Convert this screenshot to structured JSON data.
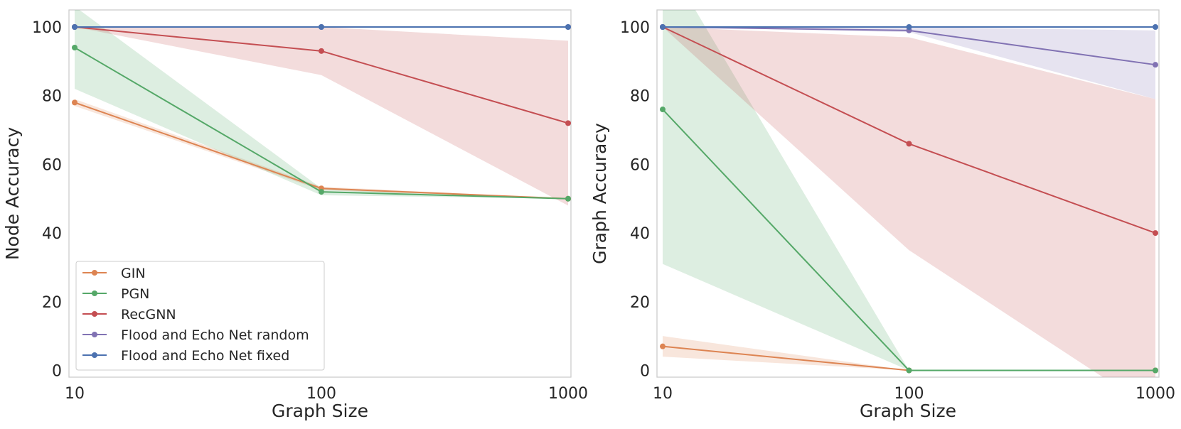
{
  "chart_data": [
    {
      "type": "line",
      "title": "",
      "xlabel": "Graph Size",
      "ylabel": "Node Accuracy",
      "x_scale": "log",
      "x": [
        10,
        100,
        1000
      ],
      "xticks": [
        "10",
        "100",
        "1000"
      ],
      "yticks": [
        "0",
        "20",
        "40",
        "60",
        "80",
        "100"
      ],
      "xlim": [
        10,
        1000
      ],
      "ylim": [
        -2,
        105
      ],
      "grid": false,
      "legend_position": "lower-left",
      "series": [
        {
          "name": "GIN",
          "color": "#dd8452",
          "values": [
            78,
            53,
            50
          ],
          "lower": [
            77,
            52.5,
            50
          ],
          "upper": [
            79,
            53.5,
            50
          ]
        },
        {
          "name": "PGN",
          "color": "#55a868",
          "values": [
            94,
            52,
            50
          ],
          "lower": [
            82,
            51,
            50
          ],
          "upper": [
            106,
            53,
            50
          ]
        },
        {
          "name": "RecGNN",
          "color": "#c44e52",
          "values": [
            100,
            93,
            72
          ],
          "lower": [
            100,
            86,
            48
          ],
          "upper": [
            100,
            100,
            96
          ]
        },
        {
          "name": "Flood and Echo Net random",
          "color": "#8172b3",
          "values": [
            100,
            100,
            100
          ],
          "lower": [
            100,
            100,
            100
          ],
          "upper": [
            100,
            100,
            100
          ]
        },
        {
          "name": "Flood and Echo Net fixed",
          "color": "#4c72b0",
          "values": [
            100,
            100,
            100
          ],
          "lower": [
            100,
            100,
            100
          ],
          "upper": [
            100,
            100,
            100
          ]
        }
      ]
    },
    {
      "type": "line",
      "title": "",
      "xlabel": "Graph Size",
      "ylabel": "Graph Accuracy",
      "x_scale": "log",
      "x": [
        10,
        100,
        1000
      ],
      "xticks": [
        "10",
        "100",
        "1000"
      ],
      "yticks": [
        "0",
        "20",
        "40",
        "60",
        "80",
        "100"
      ],
      "xlim": [
        10,
        1000
      ],
      "ylim": [
        -2,
        105
      ],
      "grid": false,
      "legend_position": "none",
      "series": [
        {
          "name": "GIN",
          "color": "#dd8452",
          "values": [
            7,
            0,
            0
          ],
          "lower": [
            4,
            0,
            0
          ],
          "upper": [
            10,
            0,
            0
          ]
        },
        {
          "name": "PGN",
          "color": "#55a868",
          "values": [
            76,
            0,
            0
          ],
          "lower": [
            31,
            0,
            0
          ],
          "upper": [
            121,
            0,
            0
          ]
        },
        {
          "name": "RecGNN",
          "color": "#c44e52",
          "values": [
            100,
            66,
            40
          ],
          "lower": [
            100,
            35,
            -12
          ],
          "upper": [
            100,
            97,
            79
          ]
        },
        {
          "name": "Flood and Echo Net random",
          "color": "#8172b3",
          "values": [
            100,
            99,
            89
          ],
          "lower": [
            100,
            98.5,
            79
          ],
          "upper": [
            100,
            100,
            99
          ]
        },
        {
          "name": "Flood and Echo Net fixed",
          "color": "#4c72b0",
          "values": [
            100,
            100,
            100
          ],
          "lower": [
            100,
            100,
            100
          ],
          "upper": [
            100,
            100,
            100
          ]
        }
      ]
    }
  ]
}
